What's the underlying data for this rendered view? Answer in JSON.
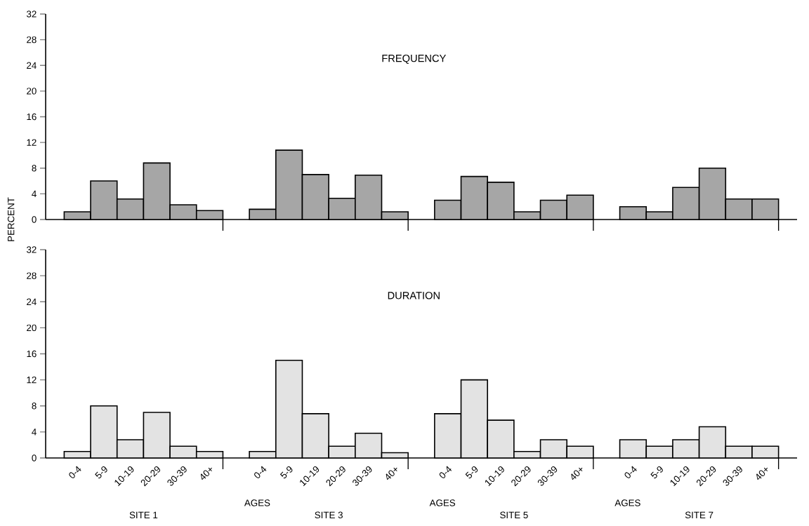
{
  "chart_data": [
    {
      "type": "bar",
      "title": "FREQUENCY",
      "ylabel": "PERCENT",
      "categories": [
        null,
        null,
        null,
        null,
        null,
        null,
        null,
        null,
        null,
        null,
        null,
        null,
        null,
        null,
        null,
        null,
        null,
        null,
        null,
        null,
        null,
        null,
        null,
        null
      ],
      "values": [
        1.2,
        6,
        3.2,
        8.8,
        2.3,
        1.4,
        1.6,
        10.8,
        7,
        3.3,
        6.9,
        1.2,
        3,
        6.7,
        5.8,
        1.2,
        3,
        3.8,
        2,
        1.2,
        5,
        8,
        3.2,
        3.2
      ],
      "color": "#a6a6a6",
      "ylim": [
        0,
        32
      ],
      "yticks": [
        0,
        4,
        8,
        12,
        16,
        20,
        24,
        28,
        32
      ],
      "grid": false,
      "tick_labels": "y"
    },
    {
      "type": "bar",
      "title": "DURATION",
      "categories": [
        "0-4",
        "5-9",
        "10-19",
        "20-29",
        "30-39",
        "40+",
        "0-4",
        "5-9",
        "10-19",
        "20-29",
        "30-39",
        "40+",
        "0-4",
        "5-9",
        "10-19",
        "20-29",
        "30-39",
        "40+",
        "0-4",
        "5-9",
        "10-19",
        "20-29",
        "30-39",
        "40+"
      ],
      "values": [
        1,
        8,
        2.8,
        7,
        1.8,
        1,
        1,
        15,
        6.8,
        1.8,
        3.8,
        0.8,
        6.8,
        12,
        5.8,
        1,
        2.8,
        1.8,
        2.8,
        1.8,
        2.8,
        4.8,
        1.8,
        1.8
      ],
      "color": "#e3e3e3",
      "ylim": [
        0,
        32
      ],
      "yticks": [
        0,
        4,
        8,
        12,
        16,
        20,
        24,
        28,
        32
      ],
      "grid": false,
      "annotations": [
        "SITE 1",
        "AGES",
        "SITE 3",
        "AGES",
        "SITE 5",
        "AGES",
        "SITE 7"
      ]
    }
  ]
}
